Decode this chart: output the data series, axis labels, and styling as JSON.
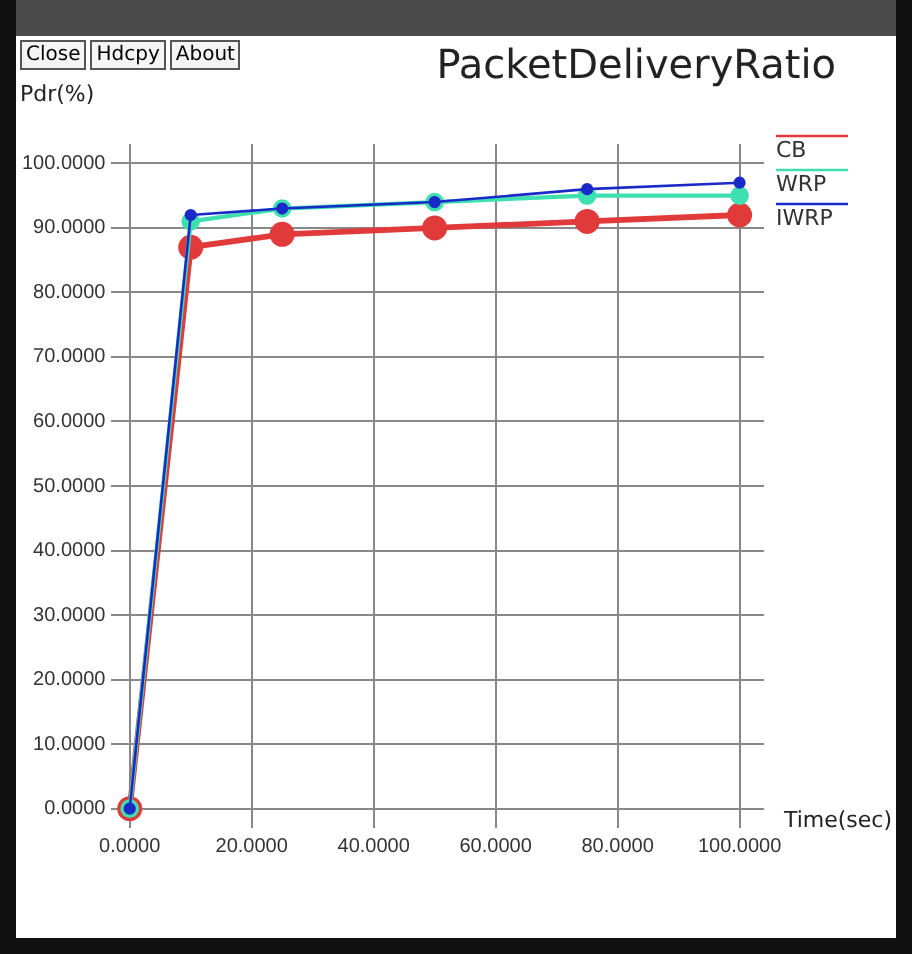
{
  "chart_data": {
    "type": "line",
    "title": "PacketDeliveryRatio",
    "xlabel": "Time(sec)",
    "ylabel": "Pdr(%)",
    "annotations": [
      "Close",
      "Hdcpy",
      "About"
    ],
    "x": [
      0,
      10,
      25,
      50,
      75,
      100
    ],
    "series": [
      {
        "name": "CB",
        "color": "#e03a3a",
        "values": [
          0,
          87,
          89,
          90,
          91,
          92
        ]
      },
      {
        "name": "WRP",
        "color": "#3ee0b0",
        "values": [
          0,
          91,
          93,
          94,
          95,
          95
        ]
      },
      {
        "name": "IWRP",
        "color": "#1a2ac8",
        "values": [
          0,
          92,
          93,
          94,
          96,
          97
        ]
      }
    ],
    "xlim": [
      -3,
      104
    ],
    "xticks": [
      {
        "value": 0,
        "label": "0.0000"
      },
      {
        "value": 20,
        "label": "20.0000"
      },
      {
        "value": 40,
        "label": "40.0000"
      },
      {
        "value": 60,
        "label": "60.0000"
      },
      {
        "value": 80,
        "label": "80.0000"
      },
      {
        "value": 100,
        "label": "100.0000"
      }
    ],
    "ylim": [
      -3,
      103
    ],
    "yticks": [
      {
        "value": 0,
        "label": "0.0000"
      },
      {
        "value": 10,
        "label": "10.0000"
      },
      {
        "value": 20,
        "label": "20.0000"
      },
      {
        "value": 30,
        "label": "30.0000"
      },
      {
        "value": 40,
        "label": "40.0000"
      },
      {
        "value": 50,
        "label": "50.0000"
      },
      {
        "value": 60,
        "label": "60.0000"
      },
      {
        "value": 70,
        "label": "70.0000"
      },
      {
        "value": 80,
        "label": "80.0000"
      },
      {
        "value": 90,
        "label": "90.0000"
      },
      {
        "value": 100,
        "label": "100.0000"
      }
    ],
    "grid": true,
    "legend": "top right",
    "marker": "circle",
    "line_style": "solid"
  }
}
